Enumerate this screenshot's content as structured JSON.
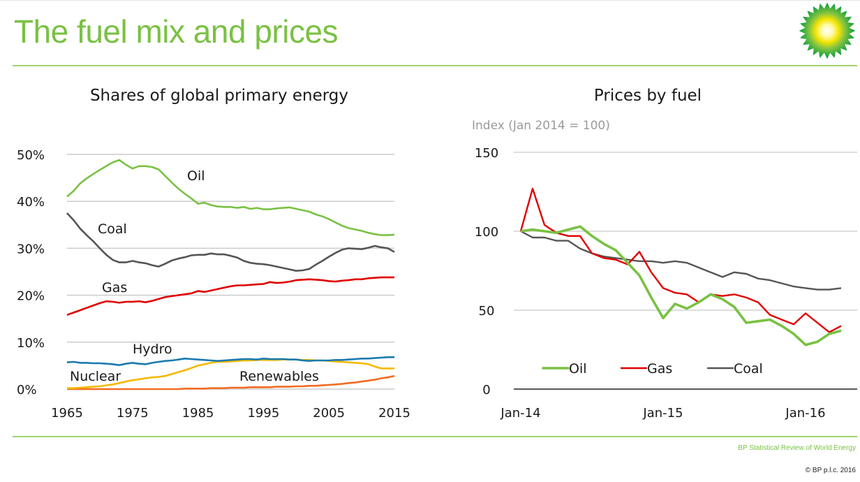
{
  "page": {
    "title": "The fuel mix and prices",
    "source": "BP Statistical Review of World Energy",
    "copyright": "© BP p.l.c. 2016",
    "logo_icon": "bp-helios-logo-icon",
    "accent_color": "#7ac143"
  },
  "chart_data": [
    {
      "type": "line",
      "title": "Shares of global primary energy",
      "xlabel": "",
      "ylabel": "",
      "xlim": [
        1965,
        2015
      ],
      "ylim": [
        0,
        50
      ],
      "xticks": [
        1965,
        1975,
        1985,
        1995,
        2005,
        2015
      ],
      "xtick_labels": [
        "1965",
        "1975",
        "1985",
        "1995",
        "2005",
        "2015"
      ],
      "yticks": [
        0,
        10,
        20,
        30,
        40,
        50
      ],
      "ytick_labels": [
        "0%",
        "10%",
        "20%",
        "30%",
        "40%",
        "50%"
      ],
      "grid": true,
      "legend": "inline-annotations",
      "x": [
        1965,
        1966,
        1967,
        1968,
        1969,
        1970,
        1971,
        1972,
        1973,
        1974,
        1975,
        1976,
        1977,
        1978,
        1979,
        1980,
        1981,
        1982,
        1983,
        1984,
        1985,
        1986,
        1987,
        1988,
        1989,
        1990,
        1991,
        1992,
        1993,
        1994,
        1995,
        1996,
        1997,
        1998,
        1999,
        2000,
        2001,
        2002,
        2003,
        2004,
        2005,
        2006,
        2007,
        2008,
        2009,
        2010,
        2011,
        2012,
        2013,
        2014,
        2015
      ],
      "series": [
        {
          "name": "Oil",
          "color": "#7ac143",
          "label": "Oil",
          "values": [
            41.0,
            42.2,
            43.8,
            44.9,
            45.8,
            46.7,
            47.5,
            48.3,
            48.8,
            47.8,
            47.0,
            47.5,
            47.5,
            47.3,
            46.8,
            45.4,
            44.0,
            42.7,
            41.6,
            40.6,
            39.5,
            39.7,
            39.2,
            38.9,
            38.8,
            38.8,
            38.6,
            38.8,
            38.4,
            38.6,
            38.3,
            38.3,
            38.5,
            38.6,
            38.7,
            38.4,
            38.1,
            37.8,
            37.2,
            36.8,
            36.2,
            35.5,
            34.8,
            34.3,
            34.0,
            33.7,
            33.3,
            33.0,
            32.8,
            32.8,
            32.9
          ]
        },
        {
          "name": "Coal",
          "color": "#555555",
          "label": "Coal",
          "values": [
            37.5,
            36.0,
            34.2,
            32.8,
            31.5,
            30.0,
            28.6,
            27.5,
            27.0,
            27.0,
            27.3,
            27.0,
            26.8,
            26.4,
            26.1,
            26.7,
            27.4,
            27.8,
            28.1,
            28.5,
            28.6,
            28.6,
            28.9,
            28.7,
            28.7,
            28.4,
            28.0,
            27.3,
            26.9,
            26.7,
            26.6,
            26.4,
            26.1,
            25.8,
            25.5,
            25.2,
            25.3,
            25.6,
            26.5,
            27.3,
            28.2,
            29.0,
            29.7,
            30.0,
            29.9,
            29.8,
            30.1,
            30.5,
            30.2,
            30.0,
            29.2
          ]
        },
        {
          "name": "Gas",
          "color": "#e00000",
          "label": "Gas",
          "values": [
            15.8,
            16.3,
            16.8,
            17.3,
            17.8,
            18.3,
            18.7,
            18.6,
            18.4,
            18.6,
            18.6,
            18.7,
            18.5,
            18.8,
            19.2,
            19.6,
            19.8,
            20.0,
            20.2,
            20.4,
            20.9,
            20.7,
            21.0,
            21.3,
            21.6,
            21.9,
            22.1,
            22.1,
            22.2,
            22.3,
            22.4,
            22.8,
            22.6,
            22.7,
            22.9,
            23.2,
            23.3,
            23.4,
            23.3,
            23.2,
            23.0,
            22.9,
            23.1,
            23.2,
            23.4,
            23.4,
            23.6,
            23.7,
            23.8,
            23.8,
            23.8
          ]
        },
        {
          "name": "Hydro",
          "color": "#1a7ab0",
          "label": "Hydro",
          "values": [
            5.7,
            5.8,
            5.6,
            5.6,
            5.5,
            5.5,
            5.4,
            5.3,
            5.1,
            5.4,
            5.6,
            5.4,
            5.3,
            5.6,
            5.8,
            6.0,
            6.1,
            6.3,
            6.5,
            6.4,
            6.3,
            6.2,
            6.1,
            6.0,
            6.1,
            6.2,
            6.3,
            6.4,
            6.4,
            6.3,
            6.5,
            6.4,
            6.4,
            6.4,
            6.3,
            6.3,
            6.1,
            6.0,
            6.1,
            6.1,
            6.1,
            6.2,
            6.2,
            6.3,
            6.4,
            6.5,
            6.5,
            6.6,
            6.7,
            6.8,
            6.8
          ]
        },
        {
          "name": "Nuclear",
          "color": "#f5b800",
          "label": "Nuclear",
          "values": [
            0.2,
            0.2,
            0.3,
            0.4,
            0.5,
            0.6,
            0.8,
            1.0,
            1.3,
            1.6,
            1.9,
            2.1,
            2.3,
            2.5,
            2.6,
            2.8,
            3.2,
            3.6,
            4.0,
            4.5,
            5.0,
            5.3,
            5.6,
            5.8,
            5.8,
            5.9,
            6.0,
            6.1,
            6.1,
            6.2,
            6.2,
            6.2,
            6.2,
            6.3,
            6.3,
            6.3,
            6.2,
            6.2,
            6.1,
            6.1,
            6.0,
            5.9,
            5.8,
            5.7,
            5.6,
            5.5,
            5.3,
            4.8,
            4.4,
            4.4,
            4.4
          ]
        },
        {
          "name": "Renewables",
          "color": "#f26b22",
          "label": "Renewables",
          "values": [
            0.0,
            0.0,
            0.0,
            0.0,
            0.0,
            0.0,
            0.0,
            0.0,
            0.0,
            0.0,
            0.0,
            0.0,
            0.0,
            0.0,
            0.0,
            0.0,
            0.0,
            0.0,
            0.1,
            0.1,
            0.1,
            0.1,
            0.2,
            0.2,
            0.2,
            0.3,
            0.3,
            0.3,
            0.4,
            0.4,
            0.4,
            0.4,
            0.5,
            0.5,
            0.5,
            0.6,
            0.6,
            0.7,
            0.7,
            0.8,
            0.9,
            1.0,
            1.1,
            1.3,
            1.4,
            1.6,
            1.8,
            2.0,
            2.3,
            2.5,
            2.8
          ]
        }
      ],
      "annotations": [
        {
          "text": "Oil",
          "series": "Oil"
        },
        {
          "text": "Coal",
          "series": "Coal"
        },
        {
          "text": "Gas",
          "series": "Gas"
        },
        {
          "text": "Hydro",
          "series": "Hydro"
        },
        {
          "text": "Nuclear",
          "series": "Nuclear"
        },
        {
          "text": "Renewables",
          "series": "Renewables"
        }
      ]
    },
    {
      "type": "line",
      "title": "Prices by fuel",
      "subtitle": "Index (Jan 2014 = 100)",
      "xlabel": "",
      "ylabel": "",
      "x_unit": "months since Jan-14",
      "xlim": [
        0,
        27
      ],
      "ylim": [
        0,
        150
      ],
      "xticks": [
        0,
        12,
        24
      ],
      "xtick_labels": [
        "Jan-14",
        "Jan-15",
        "Jan-16"
      ],
      "yticks": [
        0,
        50,
        100,
        150
      ],
      "ytick_labels": [
        "0",
        "50",
        "100",
        "150"
      ],
      "grid": true,
      "legend": "bottom-center",
      "x": [
        0,
        1,
        2,
        3,
        4,
        5,
        6,
        7,
        8,
        9,
        10,
        11,
        12,
        13,
        14,
        15,
        16,
        17,
        18,
        19,
        20,
        21,
        22,
        23,
        24,
        25,
        26,
        27
      ],
      "series": [
        {
          "name": "Oil",
          "color": "#7ac143",
          "values": [
            100,
            101,
            100,
            99,
            101,
            103,
            97,
            92,
            88,
            80,
            72,
            58,
            45,
            54,
            51,
            55,
            60,
            57,
            52,
            42,
            43,
            44,
            40,
            35,
            28,
            30,
            35,
            37
          ]
        },
        {
          "name": "Gas",
          "color": "#e00000",
          "values": [
            100,
            127,
            104,
            99,
            97,
            97,
            86,
            83,
            82,
            79,
            87,
            74,
            64,
            61,
            60,
            55,
            60,
            59,
            60,
            58,
            55,
            47,
            44,
            41,
            48,
            42,
            36,
            40
          ]
        },
        {
          "name": "Coal",
          "color": "#555555",
          "values": [
            100,
            96,
            96,
            94,
            94,
            89,
            86,
            84,
            83,
            82,
            81,
            81,
            80,
            81,
            80,
            77,
            74,
            71,
            74,
            73,
            70,
            69,
            67,
            65,
            64,
            63,
            63,
            64
          ]
        }
      ]
    }
  ]
}
